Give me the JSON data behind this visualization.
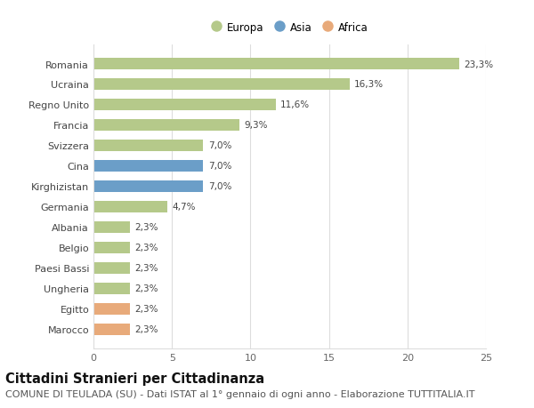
{
  "countries": [
    "Romania",
    "Ucraina",
    "Regno Unito",
    "Francia",
    "Svizzera",
    "Cina",
    "Kirghizistan",
    "Germania",
    "Albania",
    "Belgio",
    "Paesi Bassi",
    "Ungheria",
    "Egitto",
    "Marocco"
  ],
  "values": [
    23.3,
    16.3,
    11.6,
    9.3,
    7.0,
    7.0,
    7.0,
    4.7,
    2.3,
    2.3,
    2.3,
    2.3,
    2.3,
    2.3
  ],
  "labels": [
    "23,3%",
    "16,3%",
    "11,6%",
    "9,3%",
    "7,0%",
    "7,0%",
    "7,0%",
    "4,7%",
    "2,3%",
    "2,3%",
    "2,3%",
    "2,3%",
    "2,3%",
    "2,3%"
  ],
  "continents": [
    "Europa",
    "Europa",
    "Europa",
    "Europa",
    "Europa",
    "Asia",
    "Asia",
    "Europa",
    "Europa",
    "Europa",
    "Europa",
    "Europa",
    "Africa",
    "Africa"
  ],
  "colors": {
    "Europa": "#b5c98a",
    "Asia": "#6b9ec8",
    "Africa": "#e8aa7a"
  },
  "legend_entries": [
    "Europa",
    "Asia",
    "Africa"
  ],
  "legend_colors": [
    "#b5c98a",
    "#6b9ec8",
    "#e8aa7a"
  ],
  "title": "Cittadini Stranieri per Cittadinanza",
  "subtitle": "COMUNE DI TEULADA (SU) - Dati ISTAT al 1° gennaio di ogni anno - Elaborazione TUTTITALIA.IT",
  "xlim": [
    0,
    25
  ],
  "xticks": [
    0,
    5,
    10,
    15,
    20,
    25
  ],
  "background_color": "#ffffff",
  "grid_color": "#dddddd",
  "bar_height": 0.55,
  "title_fontsize": 10.5,
  "subtitle_fontsize": 8,
  "label_fontsize": 7.5,
  "tick_fontsize": 8,
  "legend_fontsize": 8.5
}
